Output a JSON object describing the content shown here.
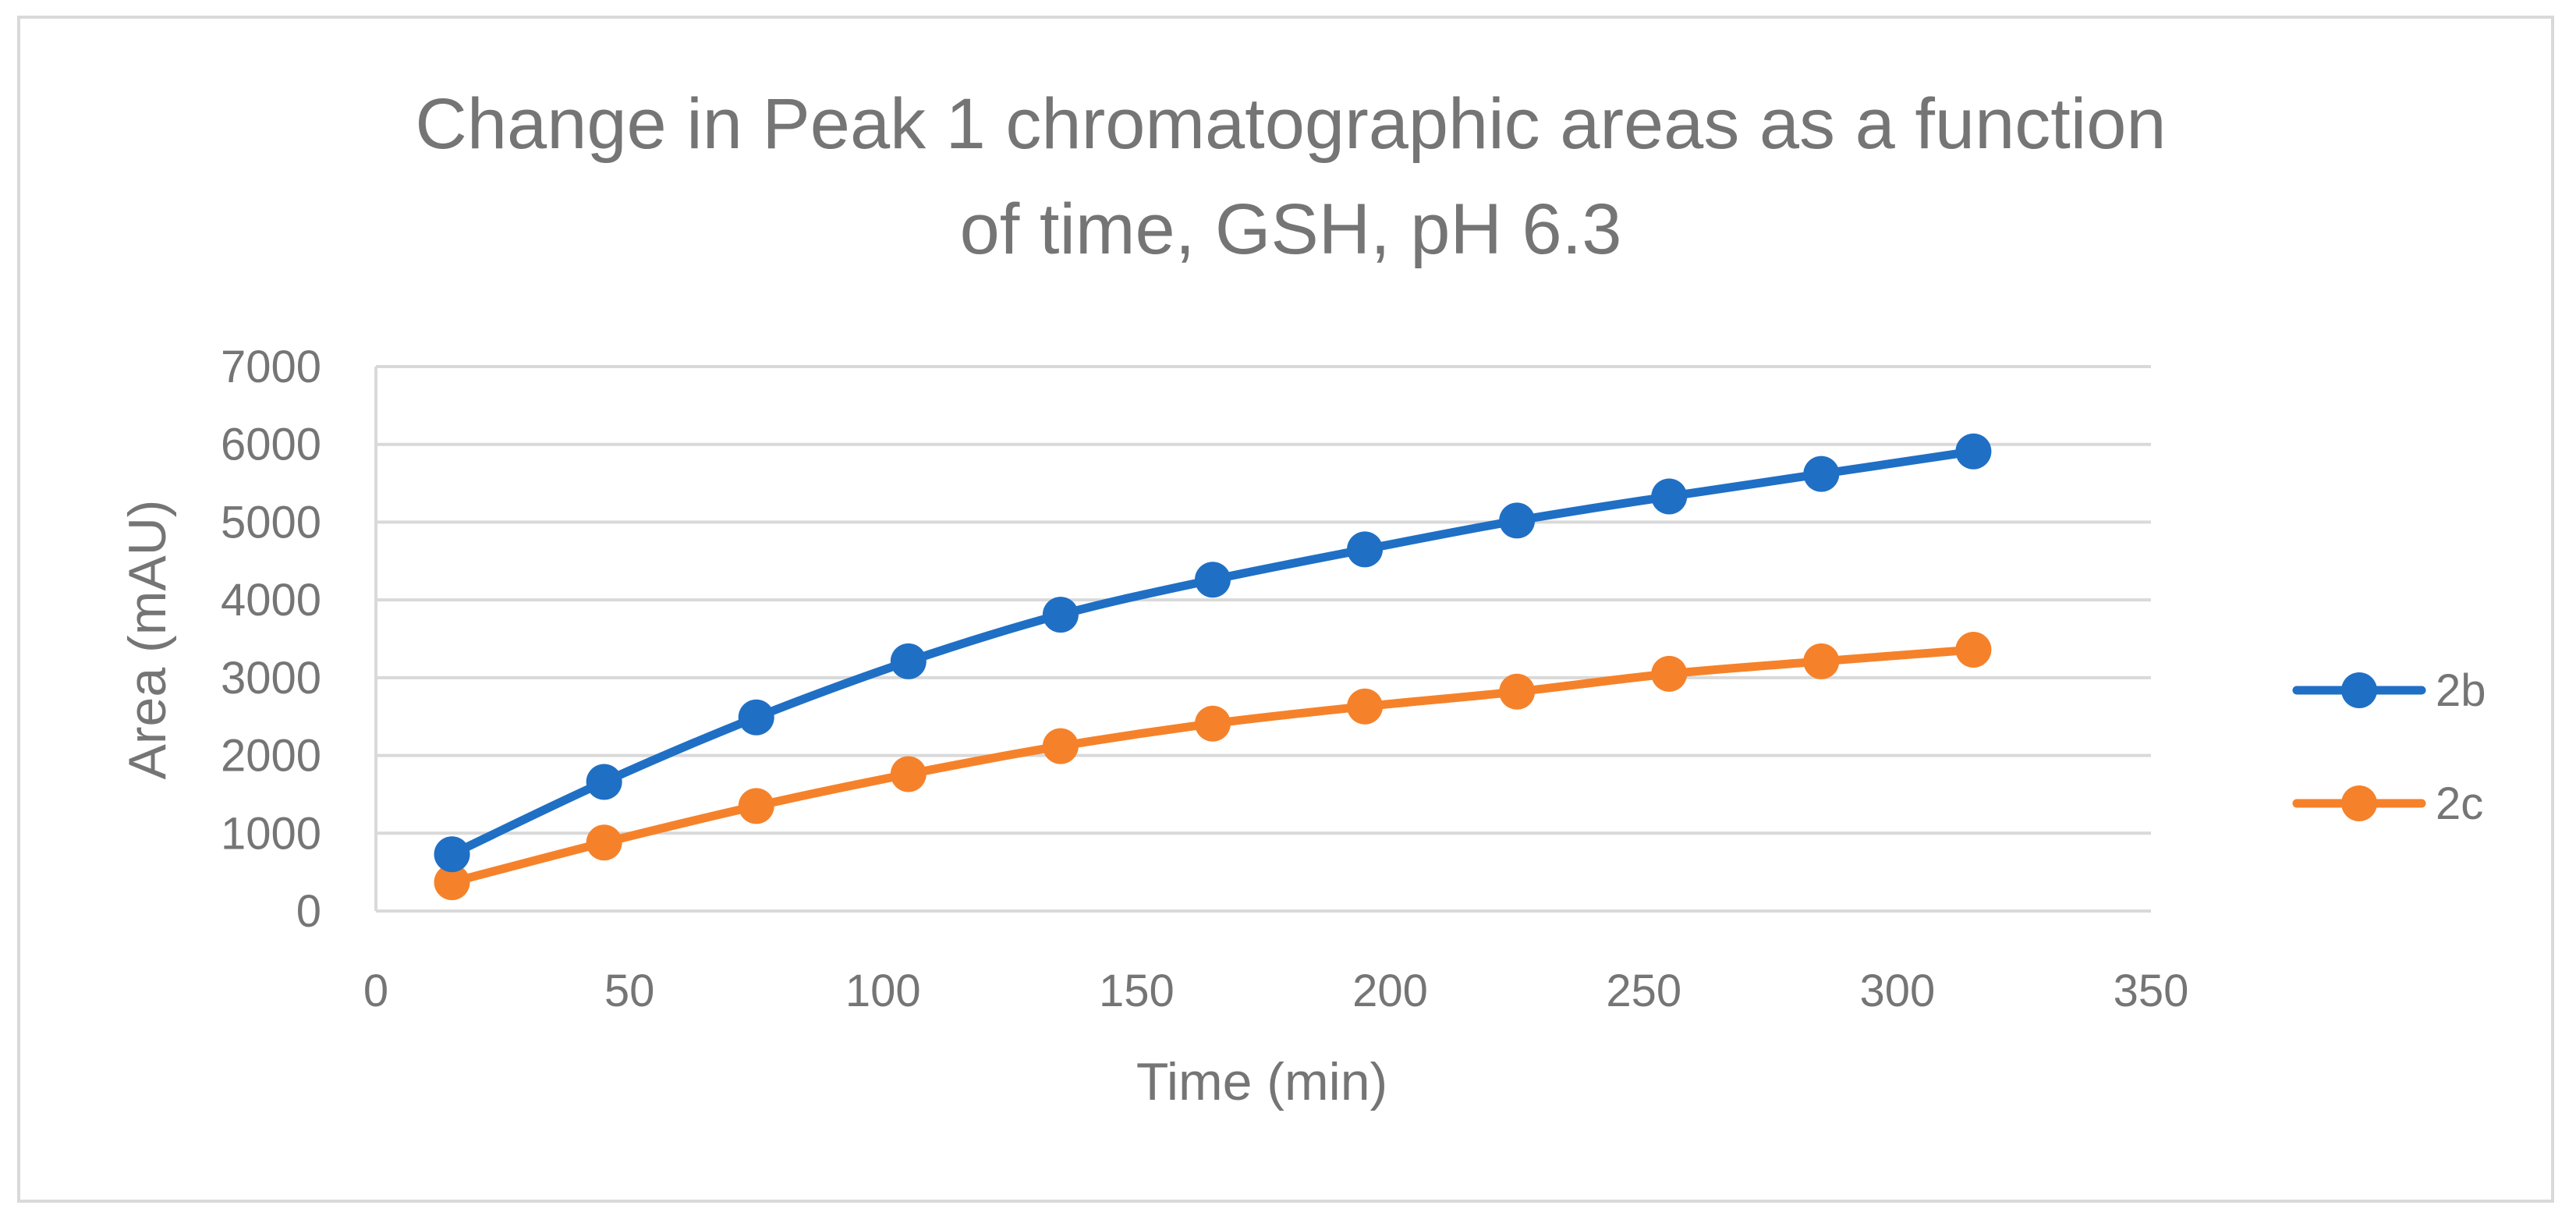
{
  "chart_data": {
    "type": "line",
    "title_lines": [
      "Change in Peak 1 chromatographic areas as a function",
      "of time, GSH, pH 6.3"
    ],
    "xlabel": "Time (min)",
    "ylabel": "Area (mAU)",
    "xlim": [
      0,
      350
    ],
    "ylim": [
      0,
      7000
    ],
    "xticks": [
      0,
      50,
      100,
      150,
      200,
      250,
      300,
      350
    ],
    "yticks": [
      0,
      1000,
      2000,
      3000,
      4000,
      5000,
      6000,
      7000
    ],
    "grid": "horizontal",
    "legend_position": "right",
    "x": [
      15,
      45,
      75,
      105,
      135,
      165,
      195,
      225,
      255,
      285,
      315
    ],
    "series": [
      {
        "name": "2b",
        "color": "#1f6fc5",
        "values": [
          730,
          1660,
          2490,
          3210,
          3810,
          4260,
          4650,
          5020,
          5330,
          5620,
          5910
        ]
      },
      {
        "name": "2c",
        "color": "#f5822a",
        "values": [
          370,
          880,
          1350,
          1760,
          2120,
          2410,
          2630,
          2820,
          3050,
          3210,
          3360
        ]
      }
    ]
  }
}
